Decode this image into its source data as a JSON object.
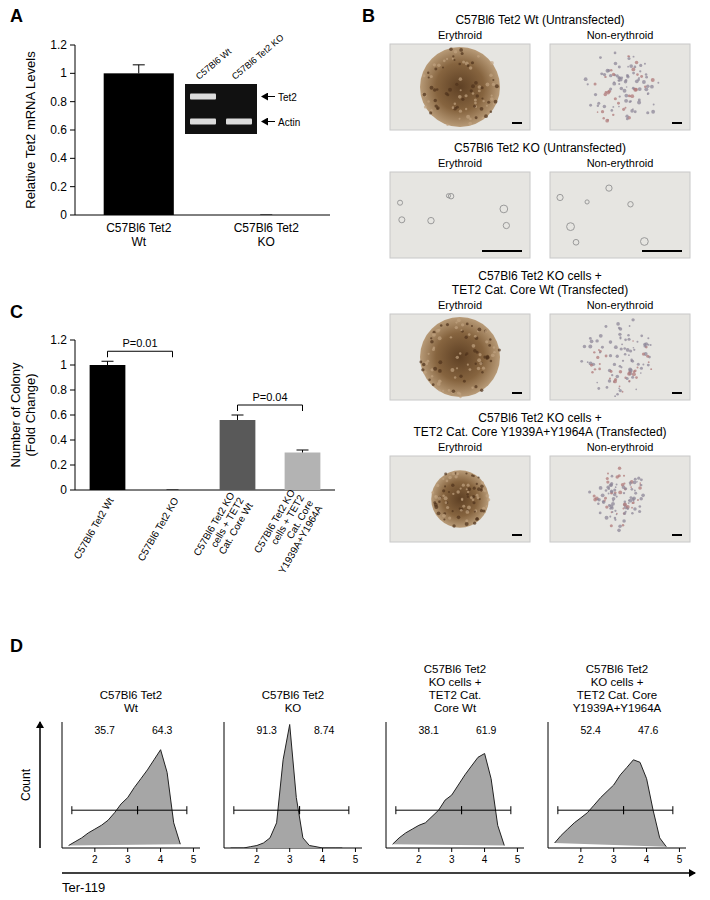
{
  "panel_labels": [
    "A",
    "B",
    "C",
    "D"
  ],
  "chart_data": [
    {
      "type": "bar",
      "y_label": "Relative Tet2 mRNA Levels",
      "categories": [
        "C57Bl6 Tet2 Wt",
        "C57Bl6 Tet2 KO"
      ],
      "values": [
        1.0,
        0
      ],
      "errors": [
        0.06,
        0
      ],
      "color": "#000000",
      "ylim": [
        0,
        1.2
      ],
      "yticks": [
        0,
        0.2,
        0.4,
        0.6,
        0.8,
        1,
        1.2
      ]
    },
    {
      "type": "bar",
      "y_label": [
        "Number of Colony",
        "(Fold Change)"
      ],
      "categories": [
        "C57Bl6 Tet2 Wt",
        "C57Bl6 Tet2 KO",
        "C57Bl6 Tet2 KO cells + TET2 Cat. Core Wt",
        "C57Bl6 Tet2 KO cells + TET2 Cat. Core Y1939A+Y1964A"
      ],
      "values": [
        1.0,
        0,
        0.56,
        0.3
      ],
      "errors": [
        0.03,
        0,
        0.04,
        0.02
      ],
      "colors": [
        "#000000",
        "#000000",
        "#595959",
        "#b3b3b3"
      ],
      "ylim": [
        0,
        1.2
      ],
      "yticks": [
        0,
        0.2,
        0.4,
        0.6,
        0.8,
        1,
        1.2
      ],
      "annotations": [
        {
          "text": "P=0.01",
          "from": 0,
          "to": 1
        },
        {
          "text": "P=0.04",
          "from": 2,
          "to": 3
        }
      ]
    },
    {
      "type": "area",
      "title": [
        "C57Bl6 Tet2",
        "Wt"
      ],
      "x": [
        1.2,
        1.4,
        1.6,
        1.8,
        2.0,
        2.2,
        2.4,
        2.6,
        2.8,
        3.0,
        3.2,
        3.4,
        3.6,
        3.8,
        4.0,
        4.2,
        4.4,
        4.6
      ],
      "values": [
        2,
        5,
        8,
        12,
        15,
        18,
        22,
        28,
        35,
        40,
        48,
        55,
        62,
        70,
        78,
        60,
        20,
        3
      ],
      "color": "#a6a6a6",
      "xlim": [
        1,
        5.2
      ],
      "xticks": [
        2,
        3,
        4,
        5
      ],
      "ylim": [
        0,
        100
      ],
      "tick_labels": "x",
      "gates": [
        [
          1.3,
          3.3
        ],
        [
          3.3,
          4.8
        ]
      ],
      "gate_level": 30,
      "gate_percent": [
        35.7,
        64.3
      ]
    },
    {
      "type": "area",
      "title": [
        "C57Bl6 Tet2",
        "KO"
      ],
      "x": [
        1.2,
        1.4,
        1.6,
        1.8,
        2.0,
        2.2,
        2.4,
        2.6,
        2.8,
        3.0,
        3.2,
        3.4,
        3.6,
        3.8,
        4.0,
        4.2,
        4.4,
        4.6
      ],
      "values": [
        0,
        0,
        0,
        1,
        2,
        4,
        8,
        20,
        70,
        98,
        40,
        8,
        2,
        1,
        0,
        0,
        0,
        0
      ],
      "color": "#a6a6a6",
      "xlim": [
        1,
        5.2
      ],
      "xticks": [
        2,
        3,
        4,
        5
      ],
      "ylim": [
        0,
        100
      ],
      "tick_labels": "x",
      "gates": [
        [
          1.3,
          3.3
        ],
        [
          3.3,
          4.8
        ]
      ],
      "gate_level": 30,
      "gate_percent": [
        91.3,
        8.74
      ]
    },
    {
      "type": "area",
      "title": [
        "C57Bl6 Tet2",
        "KO cells +",
        "TET2 Cat.",
        "Core Wt"
      ],
      "x": [
        1.2,
        1.4,
        1.6,
        1.8,
        2.0,
        2.2,
        2.4,
        2.6,
        2.8,
        3.0,
        3.2,
        3.4,
        3.6,
        3.8,
        4.0,
        4.2,
        4.4,
        4.6
      ],
      "values": [
        3,
        8,
        12,
        15,
        18,
        20,
        25,
        30,
        38,
        42,
        50,
        58,
        65,
        72,
        75,
        55,
        18,
        2
      ],
      "color": "#a6a6a6",
      "xlim": [
        1,
        5.2
      ],
      "xticks": [
        2,
        3,
        4,
        5
      ],
      "ylim": [
        0,
        100
      ],
      "tick_labels": "x",
      "gates": [
        [
          1.3,
          3.3
        ],
        [
          3.3,
          4.8
        ]
      ],
      "gate_level": 30,
      "gate_percent": [
        38.1,
        61.9
      ]
    },
    {
      "type": "area",
      "title": [
        "C57Bl6 Tet2",
        "KO cells +",
        "TET2 Cat. Core",
        "Y1939A+Y1964A"
      ],
      "x": [
        1.2,
        1.4,
        1.6,
        1.8,
        2.0,
        2.2,
        2.4,
        2.6,
        2.8,
        3.0,
        3.2,
        3.4,
        3.6,
        3.8,
        4.0,
        4.2,
        4.4,
        4.6
      ],
      "values": [
        4,
        10,
        15,
        20,
        24,
        28,
        34,
        40,
        45,
        50,
        58,
        64,
        70,
        68,
        55,
        30,
        8,
        1
      ],
      "color": "#a6a6a6",
      "xlim": [
        1,
        5.2
      ],
      "xticks": [
        2,
        3,
        4,
        5
      ],
      "ylim": [
        0,
        100
      ],
      "tick_labels": "x",
      "gates": [
        [
          1.3,
          3.3
        ],
        [
          3.3,
          4.8
        ]
      ],
      "gate_level": 30,
      "gate_percent": [
        52.4,
        47.6
      ]
    }
  ],
  "gel": {
    "lanes": [
      "C57Bl6 Wt",
      "C57Bl6 Tet2 KO"
    ],
    "rows": [
      {
        "label": "Tet2",
        "bands": [
          true,
          false
        ]
      },
      {
        "label": "Actin",
        "bands": [
          true,
          true
        ]
      }
    ]
  },
  "micrographs": [
    {
      "title": [
        "C57Bl6 Tet2 Wt (Untransfected)"
      ],
      "images": [
        "Erythroid",
        "Non-erythroid"
      ]
    },
    {
      "title": [
        "C57Bl6 Tet2 KO (Untransfected)"
      ],
      "images": [
        "Erythroid",
        "Non-erythroid"
      ]
    },
    {
      "title": [
        "C57Bl6 Tet2 KO cells +",
        "TET2 Cat. Core Wt (Transfected)"
      ],
      "images": [
        "Erythroid",
        "Non-erythroid"
      ]
    },
    {
      "title": [
        "C57Bl6 Tet2 KO cells +",
        "TET2 Cat. Core Y1939A+Y1964A (Transfected)"
      ],
      "images": [
        "Erythroid",
        "Non-erythroid"
      ]
    }
  ],
  "flow_axes": {
    "x_label": "Ter-119",
    "y_label": "Count"
  }
}
